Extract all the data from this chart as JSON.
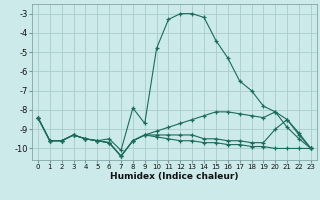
{
  "xlabel": "Humidex (Indice chaleur)",
  "background_color": "#cceaea",
  "grid_color": "#aacccc",
  "line_color": "#1a6b5a",
  "xlim": [
    -0.5,
    23.5
  ],
  "ylim": [
    -10.6,
    -2.5
  ],
  "yticks": [
    -10,
    -9,
    -8,
    -7,
    -6,
    -5,
    -4,
    -3
  ],
  "xticks": [
    0,
    1,
    2,
    3,
    4,
    5,
    6,
    7,
    8,
    9,
    10,
    11,
    12,
    13,
    14,
    15,
    16,
    17,
    18,
    19,
    20,
    21,
    22,
    23
  ],
  "series": [
    {
      "x": [
        0,
        1,
        2,
        3,
        4,
        5,
        6,
        7,
        8,
        9,
        10,
        11,
        12,
        13,
        14,
        15,
        16,
        17,
        18,
        19,
        20,
        21,
        22,
        23
      ],
      "y": [
        -8.4,
        -9.6,
        -9.6,
        -9.3,
        -9.5,
        -9.6,
        -9.5,
        -10.1,
        -7.9,
        -8.7,
        -4.8,
        -3.3,
        -3.0,
        -3.0,
        -3.2,
        -4.4,
        -5.3,
        -6.5,
        -7.0,
        -7.8,
        -8.1,
        -8.9,
        -9.5,
        -10.0
      ]
    },
    {
      "x": [
        0,
        1,
        2,
        3,
        4,
        5,
        6,
        7,
        8,
        9,
        10,
        11,
        12,
        13,
        14,
        15,
        16,
        17,
        18,
        19,
        20,
        21,
        22,
        23
      ],
      "y": [
        -8.4,
        -9.6,
        -9.6,
        -9.3,
        -9.5,
        -9.6,
        -9.7,
        -10.4,
        -9.6,
        -9.3,
        -9.4,
        -9.5,
        -9.6,
        -9.6,
        -9.7,
        -9.7,
        -9.8,
        -9.8,
        -9.9,
        -9.9,
        -10.0,
        -10.0,
        -10.0,
        -10.0
      ]
    },
    {
      "x": [
        0,
        1,
        2,
        3,
        4,
        5,
        6,
        7,
        8,
        9,
        10,
        11,
        12,
        13,
        14,
        15,
        16,
        17,
        18,
        19,
        20,
        21,
        22,
        23
      ],
      "y": [
        -8.4,
        -9.6,
        -9.6,
        -9.3,
        -9.5,
        -9.6,
        -9.7,
        -10.4,
        -9.6,
        -9.3,
        -9.1,
        -8.9,
        -8.7,
        -8.5,
        -8.3,
        -8.1,
        -8.1,
        -8.2,
        -8.3,
        -8.4,
        -8.1,
        -8.5,
        -9.2,
        -10.0
      ]
    },
    {
      "x": [
        0,
        1,
        2,
        3,
        4,
        5,
        6,
        7,
        8,
        9,
        10,
        11,
        12,
        13,
        14,
        15,
        16,
        17,
        18,
        19,
        20,
        21,
        22,
        23
      ],
      "y": [
        -8.4,
        -9.6,
        -9.6,
        -9.3,
        -9.5,
        -9.6,
        -9.7,
        -10.4,
        -9.6,
        -9.3,
        -9.3,
        -9.3,
        -9.3,
        -9.3,
        -9.5,
        -9.5,
        -9.6,
        -9.6,
        -9.7,
        -9.7,
        -9.0,
        -8.5,
        -9.3,
        -10.0
      ]
    }
  ]
}
